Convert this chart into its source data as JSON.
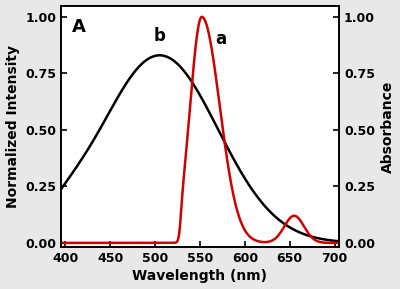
{
  "title_label": "A",
  "xlabel": "Wavelength (nm)",
  "ylabel_left": "Normalized Intensity",
  "ylabel_right": "Absorbance",
  "xlim": [
    395,
    705
  ],
  "ylim": [
    -0.02,
    1.05
  ],
  "x_ticks": [
    400,
    450,
    500,
    550,
    600,
    650,
    700
  ],
  "y_ticks": [
    0.0,
    0.25,
    0.5,
    0.75,
    1.0
  ],
  "black_curve_label": "b",
  "red_curve_label": "a",
  "plot_bg": "#ffffff",
  "fig_bg": "#e8e8e8",
  "line_color_black": "#000000",
  "line_color_red": "#cc0000",
  "linewidth": 1.8,
  "annotation_fontsize": 12,
  "label_fontsize": 10,
  "tick_fontsize": 9
}
